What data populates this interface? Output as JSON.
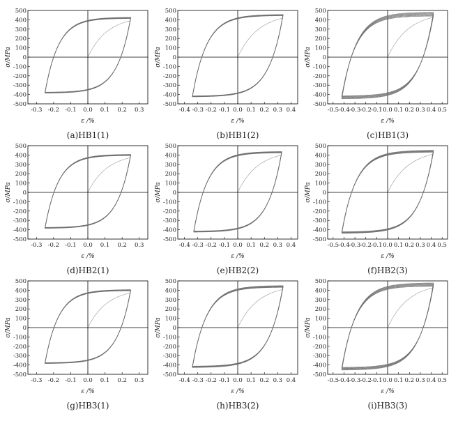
{
  "chart_data": [
    {
      "type": "line",
      "caption": "(a)HB1(1)",
      "xlabel": "ε /%",
      "ylabel": "σ/MPa",
      "xlim": [
        -0.35,
        0.35
      ],
      "ylim": [
        -500,
        500
      ],
      "xticks": [
        "-0.3",
        "-0.2",
        "-0.1",
        "0.0",
        "0.1",
        "0.2",
        "0.3"
      ],
      "yticks": [
        "500",
        "400",
        "300",
        "200",
        "100",
        "0",
        "-100",
        "-200",
        "-300",
        "-400",
        "-500"
      ],
      "strain_amplitude": 0.25,
      "stress_max": 420,
      "stress_min": -380,
      "loop_spread": 12
    },
    {
      "type": "line",
      "caption": "(b)HB1(2)",
      "xlabel": "ε /%",
      "ylabel": "σ/MPa",
      "xlim": [
        -0.45,
        0.45
      ],
      "ylim": [
        -500,
        500
      ],
      "xticks": [
        "-0.4",
        "-0.3",
        "-0.2",
        "-0.1",
        "0.0",
        "0.1",
        "0.2",
        "0.3",
        "0.4"
      ],
      "yticks": [
        "500",
        "400",
        "300",
        "200",
        "100",
        "0",
        "-100",
        "-200",
        "-300",
        "-400",
        "-500"
      ],
      "strain_amplitude": 0.34,
      "stress_max": 450,
      "stress_min": -420,
      "loop_spread": 12
    },
    {
      "type": "line",
      "caption": "(c)HB1(3)",
      "xlabel": "ε /%",
      "ylabel": "σ/MPa",
      "xlim": [
        -0.55,
        0.55
      ],
      "ylim": [
        -500,
        500
      ],
      "xticks": [
        "-0.5",
        "-0.4",
        "-0.3",
        "-0.2",
        "-0.1",
        "0.0",
        "0.1",
        "0.2",
        "0.3",
        "0.4",
        "0.5"
      ],
      "yticks": [
        "500",
        "400",
        "300",
        "200",
        "100",
        "0",
        "-100",
        "-200",
        "-300",
        "-400",
        "-500"
      ],
      "strain_amplitude": 0.42,
      "stress_max": 460,
      "stress_min": -430,
      "loop_spread": 40
    },
    {
      "type": "line",
      "caption": "(d)HB2(1)",
      "xlabel": "ε /%",
      "ylabel": "σ/MPa",
      "xlim": [
        -0.35,
        0.35
      ],
      "ylim": [
        -500,
        500
      ],
      "xticks": [
        "-0.3",
        "-0.2",
        "-0.1",
        "0.0",
        "0.1",
        "0.2",
        "0.3"
      ],
      "yticks": [
        "500",
        "400",
        "300",
        "200",
        "100",
        "0",
        "-100",
        "-200",
        "-300",
        "-400",
        "-500"
      ],
      "strain_amplitude": 0.25,
      "stress_max": 400,
      "stress_min": -380,
      "loop_spread": 12
    },
    {
      "type": "line",
      "caption": "(e)HB2(2)",
      "xlabel": "ε /%",
      "ylabel": "σ/MPa",
      "xlim": [
        -0.45,
        0.45
      ],
      "ylim": [
        -500,
        500
      ],
      "xticks": [
        "-0.4",
        "-0.3",
        "-0.2",
        "-0.1",
        "0.0",
        "0.1",
        "0.2",
        "0.3",
        "0.4"
      ],
      "yticks": [
        "500",
        "400",
        "300",
        "200",
        "100",
        "0",
        "-100",
        "-200",
        "-300",
        "-400",
        "-500"
      ],
      "strain_amplitude": 0.33,
      "stress_max": 430,
      "stress_min": -420,
      "loop_spread": 14
    },
    {
      "type": "line",
      "caption": "(f)HB2(3)",
      "xlabel": "ε /%",
      "ylabel": "σ/MPa",
      "xlim": [
        -0.55,
        0.55
      ],
      "ylim": [
        -500,
        500
      ],
      "xticks": [
        "-0.5",
        "-0.4",
        "-0.3",
        "-0.2",
        "-0.1",
        "0.0",
        "0.1",
        "0.2",
        "0.3",
        "0.4",
        "0.5"
      ],
      "yticks": [
        "500",
        "400",
        "300",
        "200",
        "100",
        "0",
        "-100",
        "-200",
        "-300",
        "-400",
        "-500"
      ],
      "strain_amplitude": 0.42,
      "stress_max": 440,
      "stress_min": -430,
      "loop_spread": 20
    },
    {
      "type": "line",
      "caption": "(g)HB3(1)",
      "xlabel": "ε /%",
      "ylabel": "σ/MPa",
      "xlim": [
        -0.35,
        0.35
      ],
      "ylim": [
        -500,
        500
      ],
      "xticks": [
        "-0.3",
        "-0.2",
        "-0.1",
        "0.0",
        "0.1",
        "0.2",
        "0.3"
      ],
      "yticks": [
        "500",
        "400",
        "300",
        "200",
        "100",
        "0",
        "-100",
        "-200",
        "-300",
        "-400",
        "-500"
      ],
      "strain_amplitude": 0.25,
      "stress_max": 400,
      "stress_min": -380,
      "loop_spread": 12
    },
    {
      "type": "line",
      "caption": "(h)HB3(2)",
      "xlabel": "ε /%",
      "ylabel": "σ/MPa",
      "xlim": [
        -0.45,
        0.45
      ],
      "ylim": [
        -500,
        500
      ],
      "xticks": [
        "-0.4",
        "-0.3",
        "-0.2",
        "-0.1",
        "0.0",
        "0.1",
        "0.2",
        "0.3",
        "0.4"
      ],
      "yticks": [
        "500",
        "400",
        "300",
        "200",
        "100",
        "0",
        "-100",
        "-200",
        "-300",
        "-400",
        "-500"
      ],
      "strain_amplitude": 0.34,
      "stress_max": 440,
      "stress_min": -420,
      "loop_spread": 18
    },
    {
      "type": "line",
      "caption": "(i)HB3(3)",
      "xlabel": "ε /%",
      "ylabel": "σ/MPa",
      "xlim": [
        -0.55,
        0.55
      ],
      "ylim": [
        -500,
        500
      ],
      "xticks": [
        "-0.5",
        "-0.4",
        "-0.3",
        "-0.2",
        "-0.1",
        "0.0",
        "0.1",
        "0.2",
        "0.3",
        "0.4",
        "0.5"
      ],
      "yticks": [
        "500",
        "400",
        "300",
        "200",
        "100",
        "0",
        "-100",
        "-200",
        "-300",
        "-400",
        "-500"
      ],
      "strain_amplitude": 0.42,
      "stress_max": 460,
      "stress_min": -440,
      "loop_spread": 35
    }
  ],
  "colors": {
    "curve": "#6e6e6e",
    "axes": "#000000",
    "text": "#222222"
  }
}
